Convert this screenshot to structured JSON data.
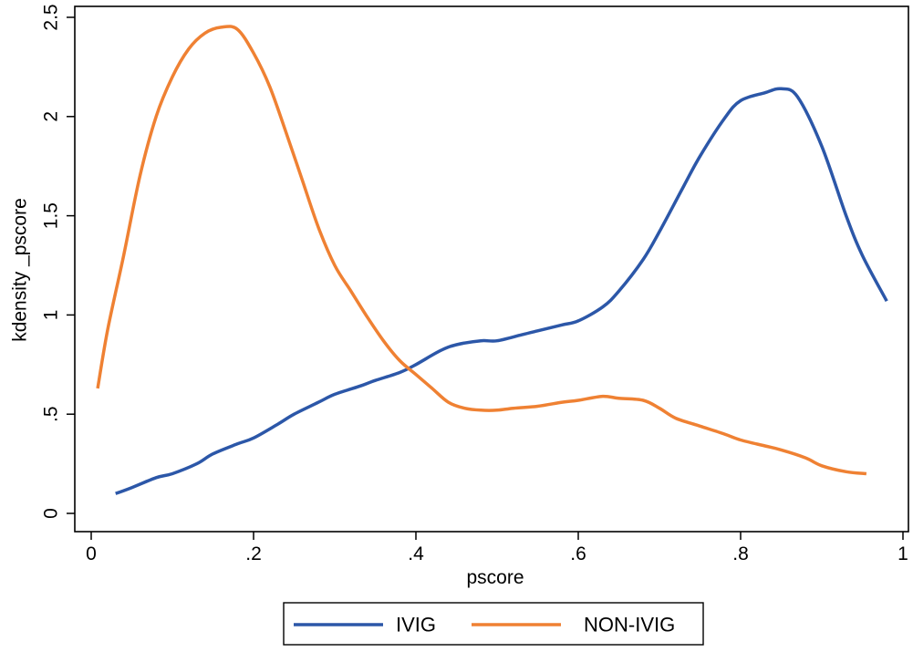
{
  "chart_data": {
    "type": "line",
    "title": "",
    "xlabel": "pscore",
    "ylabel": "kdensity _pscore",
    "xlim": [
      0,
      1
    ],
    "ylim": [
      0,
      2.5
    ],
    "x_ticks": [
      0,
      0.2,
      0.4,
      0.6,
      0.8,
      1
    ],
    "x_tick_labels": [
      "0",
      ".2",
      ".4",
      ".6",
      ".8",
      "1"
    ],
    "y_ticks": [
      0,
      0.5,
      1,
      1.5,
      2,
      2.5
    ],
    "y_tick_labels": [
      "0",
      ".5",
      "1",
      "1.5",
      "2",
      "2.5"
    ],
    "grid": false,
    "legend_position": "bottom",
    "series": [
      {
        "name": "IVIG",
        "color": "#2c57a8",
        "x": [
          0.03,
          0.05,
          0.08,
          0.1,
          0.13,
          0.15,
          0.18,
          0.2,
          0.23,
          0.25,
          0.28,
          0.3,
          0.33,
          0.35,
          0.38,
          0.4,
          0.43,
          0.45,
          0.48,
          0.5,
          0.53,
          0.55,
          0.58,
          0.6,
          0.63,
          0.65,
          0.68,
          0.7,
          0.73,
          0.75,
          0.78,
          0.8,
          0.83,
          0.85,
          0.87,
          0.9,
          0.93,
          0.95,
          0.98
        ],
        "y": [
          0.1,
          0.13,
          0.18,
          0.2,
          0.25,
          0.3,
          0.35,
          0.38,
          0.45,
          0.5,
          0.56,
          0.6,
          0.64,
          0.67,
          0.71,
          0.75,
          0.82,
          0.85,
          0.87,
          0.87,
          0.9,
          0.92,
          0.95,
          0.97,
          1.04,
          1.12,
          1.28,
          1.42,
          1.65,
          1.8,
          1.99,
          2.08,
          2.12,
          2.14,
          2.1,
          1.85,
          1.5,
          1.3,
          1.07
        ]
      },
      {
        "name": "NON-IVIG",
        "color": "#ef8133",
        "x": [
          0.008,
          0.02,
          0.04,
          0.06,
          0.08,
          0.1,
          0.12,
          0.14,
          0.16,
          0.18,
          0.2,
          0.22,
          0.24,
          0.26,
          0.28,
          0.3,
          0.32,
          0.34,
          0.36,
          0.38,
          0.4,
          0.42,
          0.44,
          0.46,
          0.48,
          0.5,
          0.52,
          0.55,
          0.58,
          0.6,
          0.63,
          0.65,
          0.68,
          0.7,
          0.72,
          0.75,
          0.78,
          0.8,
          0.83,
          0.85,
          0.88,
          0.9,
          0.93,
          0.955
        ],
        "y": [
          0.63,
          0.92,
          1.3,
          1.7,
          2.0,
          2.2,
          2.34,
          2.42,
          2.45,
          2.44,
          2.32,
          2.15,
          1.92,
          1.68,
          1.44,
          1.25,
          1.12,
          0.99,
          0.87,
          0.77,
          0.7,
          0.63,
          0.56,
          0.53,
          0.52,
          0.52,
          0.53,
          0.54,
          0.56,
          0.57,
          0.59,
          0.58,
          0.57,
          0.53,
          0.48,
          0.44,
          0.4,
          0.37,
          0.34,
          0.32,
          0.28,
          0.24,
          0.21,
          0.2
        ]
      }
    ]
  }
}
